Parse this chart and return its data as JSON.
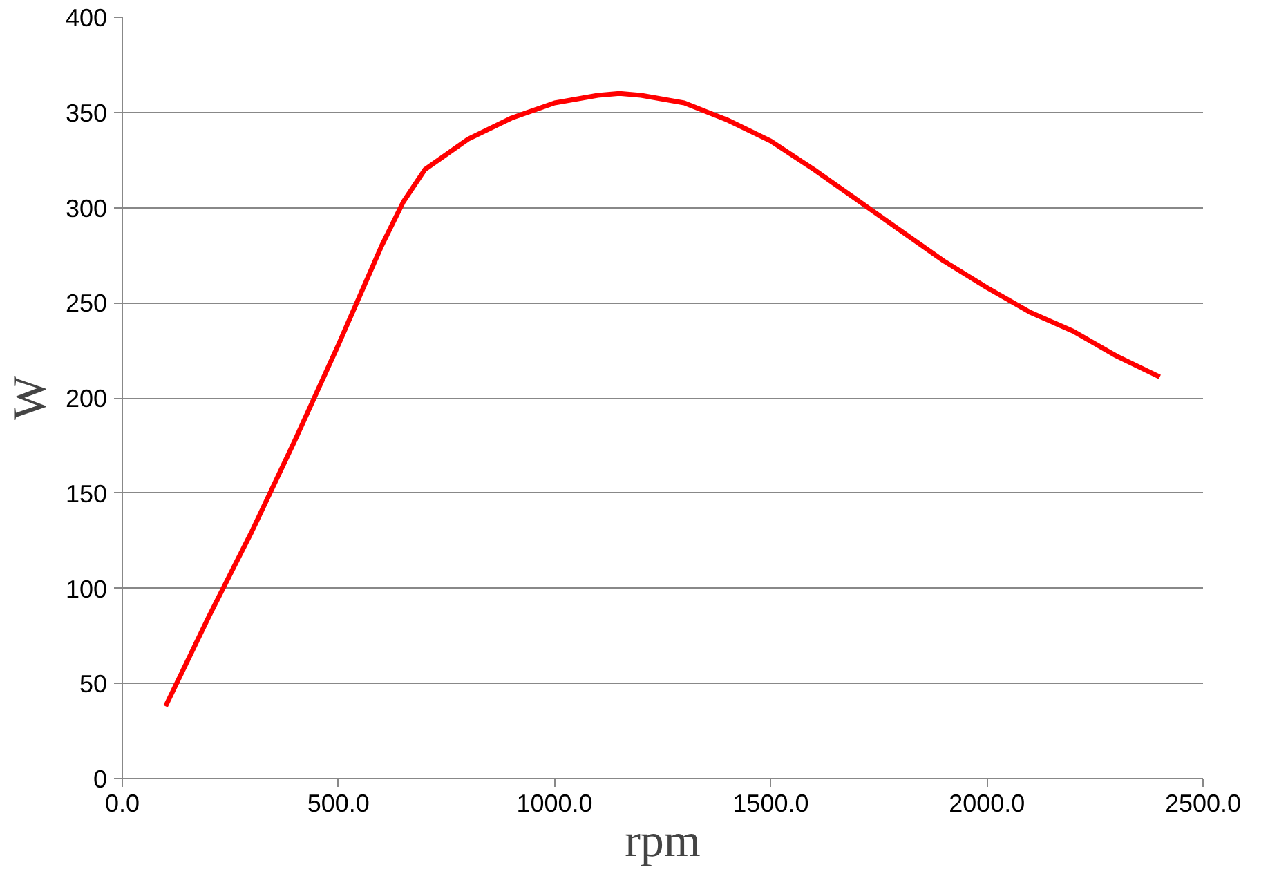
{
  "chart_data": {
    "type": "line",
    "xlabel": "rpm",
    "ylabel": "W",
    "x": [
      100,
      200,
      300,
      400,
      500,
      600,
      650,
      700,
      800,
      900,
      1000,
      1100,
      1150,
      1200,
      1300,
      1400,
      1500,
      1600,
      1700,
      1800,
      1900,
      2000,
      2100,
      2200,
      2300,
      2400
    ],
    "series": [
      {
        "color": "#ff0000",
        "values": [
          38,
          85,
          130,
          178,
          228,
          280,
          303,
          320,
          336,
          347,
          355,
          359,
          360,
          359,
          355,
          346,
          335,
          320,
          304,
          288,
          272,
          258,
          245,
          235,
          222,
          211
        ]
      }
    ],
    "xlim": [
      0,
      2500
    ],
    "ylim": [
      0,
      400
    ],
    "xticks": [
      {
        "value": 0,
        "label": "0.0"
      },
      {
        "value": 500,
        "label": "500.0"
      },
      {
        "value": 1000,
        "label": "1000.0"
      },
      {
        "value": 1500,
        "label": "1500.0"
      },
      {
        "value": 2000,
        "label": "2000.0"
      },
      {
        "value": 2500,
        "label": "2500.0"
      }
    ],
    "yticks": [
      0,
      50,
      100,
      150,
      200,
      250,
      300,
      350,
      400
    ],
    "grid": "y",
    "marker": "none",
    "line_style": "solid"
  }
}
